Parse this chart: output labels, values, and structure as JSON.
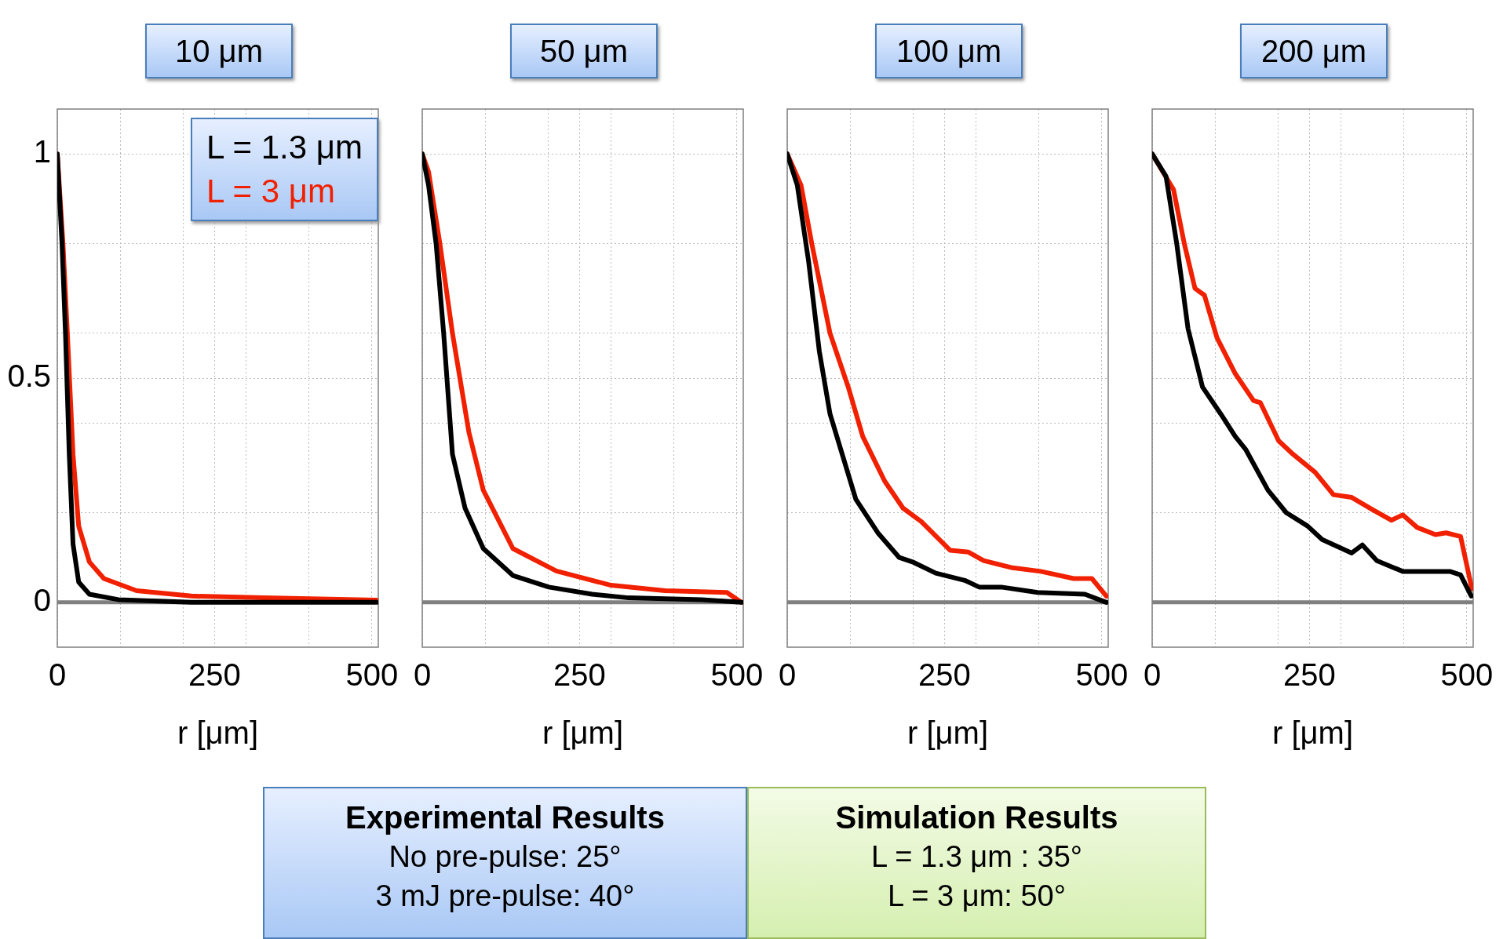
{
  "chart_data": [
    {
      "type": "line",
      "title": "10 μm",
      "xlabel": "r [μm]",
      "xlim": [
        0,
        510
      ],
      "xticks": [
        0,
        {
          "value": 100,
          "label": null
        },
        {
          "value": 200,
          "label": null
        },
        250,
        {
          "value": 300,
          "label": null
        },
        {
          "value": 400,
          "label": null
        },
        500
      ],
      "ylim": [
        -0.1,
        1.1
      ],
      "yticks": [
        0,
        {
          "value": 0.2,
          "label": null
        },
        {
          "value": 0.4,
          "label": null
        },
        0.5,
        {
          "value": 0.6,
          "label": null
        },
        {
          "value": 0.8,
          "label": null
        },
        1
      ],
      "grid": true,
      "legend": "top right",
      "ref_lines": [
        {
          "axis": "y",
          "value": 0,
          "color": "#808080"
        }
      ],
      "series": [
        {
          "name": "L = 1.3 μm",
          "color": "#000000",
          "x": [
            0,
            7.5,
            13,
            19,
            25,
            34,
            51,
            97,
            213,
            507
          ],
          "values": [
            1,
            0.8,
            0.6,
            0.33,
            0.13,
            0.045,
            0.018,
            0.006,
            0,
            0
          ]
        },
        {
          "name": "L = 3 μm",
          "color": "#f02000",
          "x": [
            0,
            9,
            16,
            25,
            34,
            51,
            74,
            126,
            213,
            328,
            507
          ],
          "values": [
            1,
            0.8,
            0.6,
            0.33,
            0.17,
            0.09,
            0.053,
            0.026,
            0.014,
            0.01,
            0.005
          ]
        }
      ]
    },
    {
      "type": "line",
      "title": "50 μm",
      "xlabel": "r [μm]",
      "xlim": [
        0,
        510
      ],
      "xticks": [
        0,
        {
          "value": 100,
          "label": null
        },
        {
          "value": 200,
          "label": null
        },
        250,
        {
          "value": 300,
          "label": null
        },
        {
          "value": 400,
          "label": null
        },
        500
      ],
      "ylim": [
        -0.1,
        1.1
      ],
      "yticks": [
        0,
        {
          "value": 0.2,
          "label": null
        },
        {
          "value": 0.4,
          "label": null
        },
        0.5,
        {
          "value": 0.6,
          "label": null
        },
        {
          "value": 0.8,
          "label": null
        },
        1
      ],
      "grid": true,
      "tick_labels": "x",
      "ref_lines": [
        {
          "axis": "y",
          "value": 0,
          "color": "#808080"
        }
      ],
      "series": [
        {
          "color": "#000000",
          "x": [
            0,
            10,
            22,
            34,
            48,
            68,
            97,
            144,
            201,
            270,
            328,
            444,
            507
          ],
          "values": [
            1,
            0.93,
            0.8,
            0.6,
            0.33,
            0.21,
            0.12,
            0.06,
            0.034,
            0.018,
            0.01,
            0.006,
            0
          ]
        },
        {
          "color": "#f02000",
          "x": [
            0,
            10,
            28,
            48,
            74,
            97,
            144,
            213,
            300,
            386,
            484,
            507
          ],
          "values": [
            1,
            0.96,
            0.8,
            0.6,
            0.38,
            0.25,
            0.12,
            0.07,
            0.038,
            0.026,
            0.022,
            0
          ]
        }
      ]
    },
    {
      "type": "line",
      "title": "100 μm",
      "xlabel": "r [μm]",
      "xlim": [
        0,
        510
      ],
      "xticks": [
        0,
        {
          "value": 100,
          "label": null
        },
        {
          "value": 200,
          "label": null
        },
        250,
        {
          "value": 300,
          "label": null
        },
        {
          "value": 400,
          "label": null
        },
        500
      ],
      "ylim": [
        -0.1,
        1.1
      ],
      "yticks": [
        0,
        {
          "value": 0.2,
          "label": null
        },
        {
          "value": 0.4,
          "label": null
        },
        0.5,
        {
          "value": 0.6,
          "label": null
        },
        {
          "value": 0.8,
          "label": null
        },
        1
      ],
      "grid": true,
      "tick_labels": "x",
      "ref_lines": [
        {
          "axis": "y",
          "value": 0,
          "color": "#808080"
        }
      ],
      "series": [
        {
          "color": "#000000",
          "x": [
            0,
            16,
            34,
            51,
            68,
            109,
            144,
            178,
            201,
            236,
            282,
            305,
            340,
            398,
            473,
            507
          ],
          "values": [
            1,
            0.93,
            0.76,
            0.56,
            0.42,
            0.23,
            0.155,
            0.1,
            0.089,
            0.065,
            0.049,
            0.034,
            0.034,
            0.022,
            0.018,
            0
          ]
        },
        {
          "color": "#f02000",
          "x": [
            0,
            22,
            39,
            68,
            97,
            120,
            155,
            184,
            213,
            259,
            288,
            312,
            358,
            403,
            455,
            484,
            507
          ],
          "values": [
            1,
            0.93,
            0.8,
            0.6,
            0.48,
            0.37,
            0.27,
            0.21,
            0.18,
            0.116,
            0.112,
            0.093,
            0.077,
            0.069,
            0.053,
            0.053,
            0.014
          ]
        }
      ]
    },
    {
      "type": "line",
      "title": "200 μm",
      "xlabel": "r [μm]",
      "xlim": [
        0,
        510
      ],
      "xticks": [
        0,
        {
          "value": 100,
          "label": null
        },
        {
          "value": 200,
          "label": null
        },
        250,
        {
          "value": 300,
          "label": null
        },
        {
          "value": 400,
          "label": null
        },
        500
      ],
      "ylim": [
        -0.1,
        1.1
      ],
      "yticks": [
        0,
        {
          "value": 0.2,
          "label": null
        },
        {
          "value": 0.4,
          "label": null
        },
        0.5,
        {
          "value": 0.6,
          "label": null
        },
        {
          "value": 0.8,
          "label": null
        },
        1
      ],
      "grid": true,
      "tick_labels": "x",
      "ref_lines": [
        {
          "axis": "y",
          "value": 0,
          "color": "#808080"
        }
      ],
      "series": [
        {
          "color": "#000000",
          "x": [
            0,
            22,
            39,
            57,
            80,
            109,
            132,
            149,
            184,
            213,
            247,
            270,
            317,
            334,
            357,
            398,
            444,
            473,
            490,
            507
          ],
          "values": [
            1,
            0.95,
            0.8,
            0.61,
            0.48,
            0.42,
            0.37,
            0.34,
            0.25,
            0.2,
            0.17,
            0.14,
            0.11,
            0.128,
            0.093,
            0.069,
            0.069,
            0.069,
            0.061,
            0.014
          ]
        },
        {
          "color": "#f02000",
          "x": [
            0,
            34,
            51,
            68,
            83,
            103,
            132,
            161,
            172,
            201,
            224,
            259,
            288,
            317,
            351,
            380,
            398,
            421,
            450,
            467,
            490,
            508
          ],
          "values": [
            1,
            0.92,
            0.8,
            0.7,
            0.685,
            0.59,
            0.51,
            0.45,
            0.445,
            0.36,
            0.33,
            0.29,
            0.24,
            0.234,
            0.206,
            0.183,
            0.195,
            0.167,
            0.151,
            0.155,
            0.147,
            0.03
          ]
        }
      ]
    },
    {
      "type": "other",
      "title": "Experimental Results",
      "annotations": [
        "No pre-pulse: 25°",
        "3 mJ pre-pulse: 40°"
      ]
    },
    {
      "type": "other",
      "title": "Simulation Results",
      "annotations": [
        "L = 1.3 μm : 35°",
        "L = 3 μm: 50°"
      ]
    }
  ]
}
